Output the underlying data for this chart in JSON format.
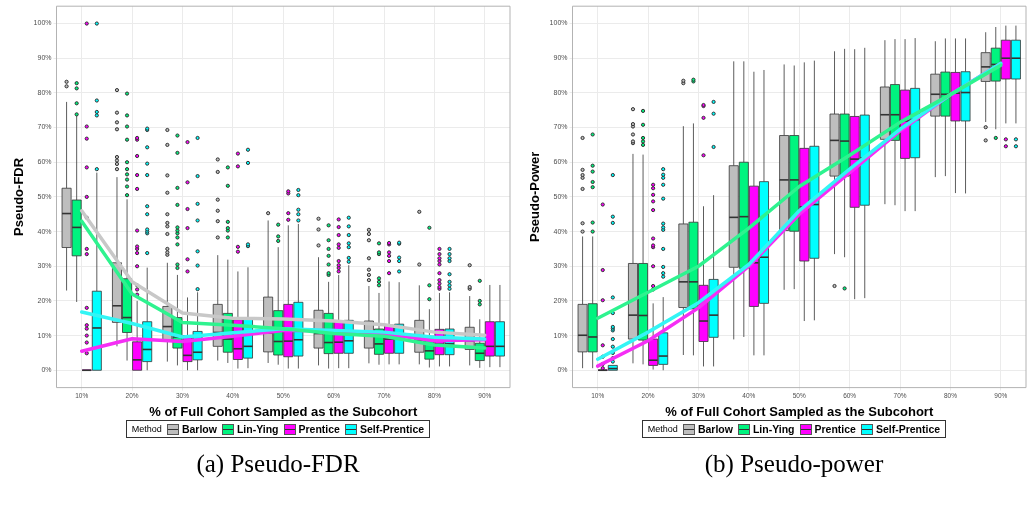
{
  "chart_data": [
    {
      "type": "box",
      "xlabel": "% of Full Cohort Sampled as the Subcohort",
      "ylabel": "Pseudo-FDR",
      "legend": "bottom",
      "legend_title": "Method",
      "grid": true,
      "categories": [
        "10%",
        "20%",
        "30%",
        "40%",
        "50%",
        "60%",
        "70%",
        "80%",
        "90%"
      ],
      "ylim": [
        -5,
        105
      ],
      "yticks": [
        {
          "value": 0,
          "label": "0%"
        },
        {
          "value": 10,
          "label": "10%"
        },
        {
          "value": 20,
          "label": "20%"
        },
        {
          "value": 30,
          "label": "30%"
        },
        {
          "value": 40,
          "label": "40%"
        },
        {
          "value": 50,
          "label": "50%"
        },
        {
          "value": 60,
          "label": "60%"
        },
        {
          "value": 70,
          "label": "70%"
        },
        {
          "value": 80,
          "label": "80%"
        },
        {
          "value": 90,
          "label": "90%"
        },
        {
          "value": 100,
          "label": "100%"
        }
      ],
      "annotations": [
        "(a) Pseudo-FDR"
      ],
      "series": [
        {
          "name": "Barlow",
          "color": "#bebebe",
          "boxes": [
            {
              "low": 23,
              "q1": 35.4,
              "median": 45.2,
              "q3": 52.5,
              "high": 77.4,
              "outliers": [
                81.9,
                83.2
              ]
            },
            {
              "low": 6.9,
              "q1": 13.8,
              "median": 18.6,
              "q3": 31,
              "high": 55.7,
              "outliers": [
                58,
                59.5,
                60.5,
                61.5,
                69.5,
                71.5,
                74.3,
                80.8
              ]
            },
            {
              "low": 2.5,
              "q1": 8.4,
              "median": 12.6,
              "q3": 18.4,
              "high": 31,
              "outliers": [
                33.3,
                34,
                35,
                39.3,
                41.5,
                42.5,
                45,
                51.2,
                56.2,
                65,
                69.3
              ]
            },
            {
              "low": 2.8,
              "q1": 6.9,
              "median": 10.9,
              "q3": 19,
              "high": 33.2,
              "outliers": [
                38.3,
                43,
                46,
                49.2,
                57.2,
                60.8
              ]
            },
            {
              "low": 2.1,
              "q1": 5.3,
              "median": 10.8,
              "q3": 21.1,
              "high": 43.2,
              "outliers": [
                45.3
              ]
            },
            {
              "low": 1.4,
              "q1": 6.4,
              "median": 10.6,
              "q3": 17.3,
              "high": 32.6,
              "outliers": [
                36,
                40.6,
                43.7
              ]
            },
            {
              "low": 2,
              "q1": 6.4,
              "median": 10.4,
              "q3": 14.2,
              "high": 24.3,
              "outliers": [
                26,
                27.5,
                29,
                32.3,
                37.5,
                39.3,
                40.5
              ]
            },
            {
              "low": 1.7,
              "q1": 5.2,
              "median": 8.7,
              "q3": 14.4,
              "high": 24.5,
              "outliers": [
                30.5,
                45.7
              ]
            },
            {
              "low": 1.4,
              "q1": 6,
              "median": 8.5,
              "q3": 12.4,
              "high": 21.4,
              "outliers": [
                23.5,
                24,
                30.3
              ]
            }
          ]
        },
        {
          "name": "Lin-Ying",
          "color": "#00f47f",
          "boxes": [
            {
              "low": 19.7,
              "q1": 33,
              "median": 41.2,
              "q3": 49.1,
              "high": 73.5,
              "outliers": [
                73.8,
                77,
                81.3,
                82.8
              ]
            },
            {
              "low": 2.8,
              "q1": 10.9,
              "median": 15.2,
              "q3": 26.4,
              "high": 49.3,
              "outliers": [
                50.5,
                53,
                55,
                56.5,
                58,
                60,
                66.5,
                70.3,
                73.5,
                79.8
              ]
            },
            {
              "low": 1.4,
              "q1": 6.4,
              "median": 9.6,
              "q3": 15.2,
              "high": 27.5,
              "outliers": [
                29.5,
                30.5,
                36.3,
                38.3,
                39.5,
                40.3,
                41.2,
                47.7,
                52.6,
                62.7,
                67.7
              ]
            },
            {
              "low": 2.1,
              "q1": 5.2,
              "median": 9,
              "q3": 16.4,
              "high": 31.9,
              "outliers": [
                38.3,
                40.3,
                41,
                42.8,
                53.2,
                58.5
              ]
            },
            {
              "low": 1.6,
              "q1": 4.4,
              "median": 8.3,
              "q3": 17.2,
              "high": 35.5,
              "outliers": [
                37.3,
                38.6,
                42
              ]
            },
            {
              "low": 0.5,
              "q1": 4.8,
              "median": 8,
              "q3": 16.4,
              "high": 25.5,
              "outliers": [
                27.5,
                28,
                30.5,
                33,
                35,
                37.5,
                41.8
              ]
            },
            {
              "low": 1.6,
              "q1": 4.6,
              "median": 7.6,
              "q3": 11.9,
              "high": 22.3,
              "outliers": [
                24.5,
                25.5,
                26.5,
                33.5,
                34,
                36.6
              ]
            },
            {
              "low": 0.8,
              "q1": 3.2,
              "median": 5.6,
              "q3": 9.8,
              "high": 17.6,
              "outliers": [
                20.5,
                24.5,
                41.1
              ]
            },
            {
              "low": 0.7,
              "q1": 2.8,
              "median": 4.9,
              "q3": 7.8,
              "high": 14.7,
              "outliers": [
                19,
                20,
                25.8
              ]
            }
          ]
        },
        {
          "name": "Prentice",
          "color": "#ff00ff",
          "boxes": [
            {
              "low": 0,
              "q1": 0,
              "median": 0,
              "q3": 0,
              "high": 0,
              "outliers": [
                4.9,
                8,
                10,
                12,
                13,
                18,
                33.5,
                35,
                44,
                50,
                58.5,
                66.8,
                70.3,
                100
              ]
            },
            {
              "low": 0,
              "q1": 0,
              "median": 3,
              "q3": 8.2,
              "high": 20,
              "outliers": [
                21.8,
                23.3,
                24.5,
                30,
                33.8,
                35,
                35.7,
                40.3,
                52.3,
                56.3,
                61.8,
                66.5,
                67
              ]
            },
            {
              "low": 0,
              "q1": 2.5,
              "median": 4.3,
              "q3": 10,
              "high": 21,
              "outliers": [
                28.5,
                32,
                41,
                46.5,
                54.2,
                65.8
              ]
            },
            {
              "low": 0.5,
              "q1": 3.1,
              "median": 6.2,
              "q3": 14.6,
              "high": 28.5,
              "outliers": [
                34.2,
                35.6,
                58.8,
                62.5
              ]
            },
            {
              "low": 0.5,
              "q1": 3.9,
              "median": 8.4,
              "q3": 19,
              "high": 41.8,
              "outliers": [
                43.4,
                45.3,
                51,
                51.6
              ]
            },
            {
              "low": 0.6,
              "q1": 4.9,
              "median": 8.1,
              "q3": 14,
              "high": 27.5,
              "outliers": [
                28.5,
                29.5,
                30.3,
                31.5,
                35.3,
                36.3,
                39,
                41.3,
                43.5
              ]
            },
            {
              "low": 1.7,
              "q1": 4.9,
              "median": 9,
              "q3": 13,
              "high": 25.6,
              "outliers": [
                28,
                31.5,
                33,
                34,
                36.3,
                36.7
              ]
            },
            {
              "low": 1.1,
              "q1": 4.5,
              "median": 7.5,
              "q3": 11.8,
              "high": 22.3,
              "outliers": [
                23.5,
                24,
                25,
                26,
                28,
                30.5,
                31.5,
                32.3,
                33.5,
                35
              ]
            },
            {
              "low": 0.9,
              "q1": 4.1,
              "median": 6.9,
              "q3": 14,
              "high": 24.6
            }
          ]
        },
        {
          "name": "Self-Prentice",
          "color": "#00ffff",
          "boxes": [
            {
              "low": 0,
              "q1": 0,
              "median": 12.2,
              "q3": 22.8,
              "high": 57,
              "outliers": [
                58,
                73.5,
                74.5,
                77.8,
                100
              ]
            },
            {
              "low": 0,
              "q1": 2.5,
              "median": 6,
              "q3": 14,
              "high": 29.6,
              "outliers": [
                33.8,
                39.5,
                40,
                40.6,
                45,
                47.3,
                56.3,
                59.6,
                64.3,
                69.3,
                69.7
              ]
            },
            {
              "low": 0,
              "q1": 3,
              "median": 5.2,
              "q3": 11.2,
              "high": 22.5,
              "outliers": [
                23.4,
                30.2,
                34.3,
                43.2,
                48,
                56,
                67
              ]
            },
            {
              "low": 0.6,
              "q1": 3.5,
              "median": 6.9,
              "q3": 15.2,
              "high": 29.7,
              "outliers": [
                35.8,
                36.3,
                59.8,
                63.6
              ]
            },
            {
              "low": 0.5,
              "q1": 4.1,
              "median": 8.8,
              "q3": 19.6,
              "high": 42.2,
              "outliers": [
                43.2,
                45,
                46.3,
                50.5,
                52
              ]
            },
            {
              "low": 0.6,
              "q1": 4.9,
              "median": 8.5,
              "q3": 14.4,
              "high": 30.3,
              "outliers": [
                31.3,
                32.4,
                35.5,
                36.6,
                39,
                41.5,
                44
              ]
            },
            {
              "low": 1.7,
              "q1": 4.9,
              "median": 9.3,
              "q3": 13.3,
              "high": 25.4,
              "outliers": [
                28.5,
                31.5,
                32.5,
                36.5,
                36.8
              ]
            },
            {
              "low": 1.1,
              "q1": 4.5,
              "median": 7.6,
              "q3": 11.9,
              "high": 22.5,
              "outliers": [
                23.5,
                24.5,
                25.5,
                27.7,
                31.5,
                32.3,
                33.5,
                35
              ]
            },
            {
              "low": 0.9,
              "q1": 4.1,
              "median": 6.9,
              "q3": 14,
              "high": 24.6
            }
          ]
        },
        {
          "type": "line",
          "color": "#c8c8c8",
          "values": [
            46,
            25.5,
            16.5,
            15,
            14.8,
            14.2,
            13.1,
            11,
            10.1
          ]
        },
        {
          "type": "line",
          "color": "#2ef38f",
          "values": [
            43,
            22,
            13.8,
            13,
            12,
            10.6,
            9.8,
            7.3,
            6.4
          ]
        },
        {
          "type": "line",
          "color": "#33f5f5",
          "values": [
            16.8,
            13.5,
            9.6,
            10.8,
            12,
            11.5,
            11,
            9.5,
            9
          ]
        },
        {
          "type": "line",
          "color": "#f52ef5",
          "values": [
            5.5,
            9.1,
            8.3,
            9.8,
            11.5,
            11.5,
            10.5,
            8.5,
            8.8
          ]
        }
      ]
    },
    {
      "type": "box",
      "xlabel": "% of Full Cohort Sampled as the Subcohort",
      "ylabel": "Pseudo-Power",
      "legend": "bottom",
      "legend_title": "Method",
      "grid": true,
      "categories": [
        "10%",
        "20%",
        "30%",
        "40%",
        "50%",
        "60%",
        "70%",
        "80%",
        "90%"
      ],
      "ylim": [
        -5,
        105
      ],
      "yticks": [
        {
          "value": 0,
          "label": "0%"
        },
        {
          "value": 10,
          "label": "10%"
        },
        {
          "value": 20,
          "label": "20%"
        },
        {
          "value": 30,
          "label": "30%"
        },
        {
          "value": 40,
          "label": "40%"
        },
        {
          "value": 50,
          "label": "50%"
        },
        {
          "value": 60,
          "label": "60%"
        },
        {
          "value": 70,
          "label": "70%"
        },
        {
          "value": 80,
          "label": "80%"
        },
        {
          "value": 90,
          "label": "90%"
        },
        {
          "value": 100,
          "label": "100%"
        }
      ],
      "annotations": [
        "(b) Pseudo-power"
      ],
      "series": [
        {
          "name": "Barlow",
          "color": "#bebebe",
          "boxes": [
            {
              "low": 0.6,
              "q1": 5.3,
              "median": 10.1,
              "q3": 19,
              "high": 38.6,
              "outliers": [
                40,
                42.4,
                52.3,
                55.5,
                56.3,
                57.8,
                67
              ]
            },
            {
              "low": 2,
              "q1": 9,
              "median": 15.9,
              "q3": 30.8,
              "high": 62.4,
              "outliers": [
                65.5,
                66,
                68,
                70.3,
                71,
                75.3
              ]
            },
            {
              "low": 4.4,
              "q1": 18.1,
              "median": 25.5,
              "q3": 42.2,
              "high": 70.4,
              "outliers": [
                82.8,
                83.5
              ]
            },
            {
              "low": 8.9,
              "q1": 29.7,
              "median": 44.1,
              "q3": 59,
              "high": 89.1
            },
            {
              "low": 23.2,
              "q1": 40.3,
              "median": 54.9,
              "q3": 67.7,
              "high": 88.2
            },
            {
              "low": 33.5,
              "q1": 56,
              "median": 66.3,
              "q3": 73.9,
              "high": 92,
              "outliers": [
                24.3
              ]
            },
            {
              "low": 47.9,
              "q1": 66.6,
              "median": 73.7,
              "q3": 81.7,
              "high": 95.2
            },
            {
              "low": 55.7,
              "q1": 73.3,
              "median": 79.6,
              "q3": 85.4,
              "high": 94.9
            },
            {
              "low": 71.6,
              "q1": 83.3,
              "median": 87.5,
              "q3": 91.6,
              "high": 97.5,
              "outliers": [
                66.3,
                70.1
              ]
            }
          ]
        },
        {
          "name": "Lin-Ying",
          "color": "#00f47f",
          "boxes": [
            {
              "low": 0.6,
              "q1": 5.3,
              "median": 9.6,
              "q3": 19.2,
              "high": 38.6,
              "outliers": [
                40,
                42.6,
                52.8,
                54.3,
                57.3,
                59,
                68
              ]
            },
            {
              "low": 1.7,
              "q1": 8.7,
              "median": 15.8,
              "q3": 30.8,
              "high": 62.2,
              "outliers": [
                65,
                66,
                67,
                70.8,
                74.8
              ]
            },
            {
              "low": 4.3,
              "q1": 17.7,
              "median": 25.5,
              "q3": 42.7,
              "high": 71.2,
              "outliers": [
                83.3,
                83.8
              ]
            },
            {
              "low": 9.6,
              "q1": 29.4,
              "median": 44.3,
              "q3": 60,
              "high": 89.1
            },
            {
              "low": 23.4,
              "q1": 40.1,
              "median": 54.9,
              "q3": 67.7,
              "high": 87.9
            },
            {
              "low": 32.6,
              "q1": 56,
              "median": 66.1,
              "q3": 73.9,
              "high": 92.7,
              "outliers": [
                23.6
              ]
            },
            {
              "low": 47.6,
              "q1": 66.3,
              "median": 73.7,
              "q3": 82.4,
              "high": 95.5
            },
            {
              "low": 56,
              "q1": 73.3,
              "median": 79.6,
              "q3": 86,
              "high": 95.7
            },
            {
              "low": 69.5,
              "q1": 83.4,
              "median": 88.2,
              "q3": 92.9,
              "high": 99,
              "outliers": [
                67
              ]
            }
          ]
        },
        {
          "name": "Prentice",
          "color": "#ff00ff",
          "boxes": [
            {
              "low": 0,
              "q1": 0,
              "median": 0,
              "q3": 0,
              "high": 0,
              "outliers": [
                0.6,
                1.8,
                3.9,
                7.2,
                20.2,
                28.9,
                47.8
              ]
            },
            {
              "low": 0.2,
              "q1": 1.4,
              "median": 2.9,
              "q3": 9,
              "high": 19.3,
              "outliers": [
                23.3,
                24.3,
                30,
                35.5,
                36,
                38,
                46.2,
                48.7,
                50.6,
                52.5,
                53.5
              ]
            },
            {
              "low": 1.1,
              "q1": 8.3,
              "median": 14.2,
              "q3": 24.5,
              "high": 47.3,
              "outliers": [
                62,
                72.8,
                76.2,
                76.5
              ]
            },
            {
              "low": 4.3,
              "q1": 18.4,
              "median": 31,
              "q3": 53.1,
              "high": 86.1
            },
            {
              "low": 14.2,
              "q1": 31.5,
              "median": 47.1,
              "q3": 64,
              "high": 88.8
            },
            {
              "low": 20.5,
              "q1": 47,
              "median": 60.9,
              "q3": 73.2,
              "high": 92.6
            },
            {
              "low": 45.9,
              "q1": 61.1,
              "median": 71.9,
              "q3": 80.8,
              "high": 95.5
            },
            {
              "low": 51.1,
              "q1": 71.9,
              "median": 79.9,
              "q3": 85.9,
              "high": 95.7
            },
            {
              "low": 71.2,
              "q1": 84,
              "median": 90,
              "q3": 95.2,
              "high": 99.4,
              "outliers": [
                64.6,
                66.6
              ]
            }
          ]
        },
        {
          "name": "Self-Prentice",
          "color": "#00ffff",
          "boxes": [
            {
              "low": 0,
              "q1": 0,
              "median": 0.5,
              "q3": 1.4,
              "high": 1.4,
              "outliers": [
                2.5,
                3.5,
                5,
                6.8,
                9,
                11.5,
                12,
                12.5,
                16.5,
                21,
                42.5,
                44.3,
                56.3
              ]
            },
            {
              "low": 0,
              "q1": 1.7,
              "median": 4.1,
              "q3": 10.8,
              "high": 21.1,
              "outliers": [
                27,
                28,
                29.8,
                35,
                40.5,
                41.2,
                42.3,
                49.5,
                53.5,
                55.5,
                56.4,
                58
              ]
            },
            {
              "low": 1.1,
              "q1": 9.5,
              "median": 15.9,
              "q3": 26.2,
              "high": 50.5,
              "outliers": [
                64.4,
                74,
                77.4
              ]
            },
            {
              "low": 4.3,
              "q1": 19.3,
              "median": 32.6,
              "q3": 54.4,
              "high": 86.6
            },
            {
              "low": 14.4,
              "q1": 32.3,
              "median": 47.8,
              "q3": 64.6,
              "high": 89.3
            },
            {
              "low": 20.8,
              "q1": 47.6,
              "median": 61.2,
              "q3": 73.6,
              "high": 93
            },
            {
              "low": 45.9,
              "q1": 61.3,
              "median": 72.3,
              "q3": 81.3,
              "high": 95.8
            },
            {
              "low": 51,
              "q1": 71.9,
              "median": 80.1,
              "q3": 86.1,
              "high": 95.7
            },
            {
              "low": 71.2,
              "q1": 84,
              "median": 90,
              "q3": 95.2,
              "high": 99.4,
              "outliers": [
                64.6,
                66.6
              ]
            }
          ]
        },
        {
          "type": "line",
          "color": "#2ef38f",
          "values": [
            15,
            22.5,
            30,
            41,
            53,
            62,
            71.5,
            79.5,
            88
          ]
        },
        {
          "type": "line",
          "color": "#33f5f5",
          "values": [
            3.2,
            11,
            19.5,
            30.5,
            46,
            58,
            69.5,
            79.5,
            88.5
          ]
        },
        {
          "type": "line",
          "color": "#f52ef5",
          "values": [
            1.2,
            8.5,
            18,
            30,
            45,
            57,
            69,
            79.5,
            88.5
          ]
        }
      ]
    }
  ]
}
